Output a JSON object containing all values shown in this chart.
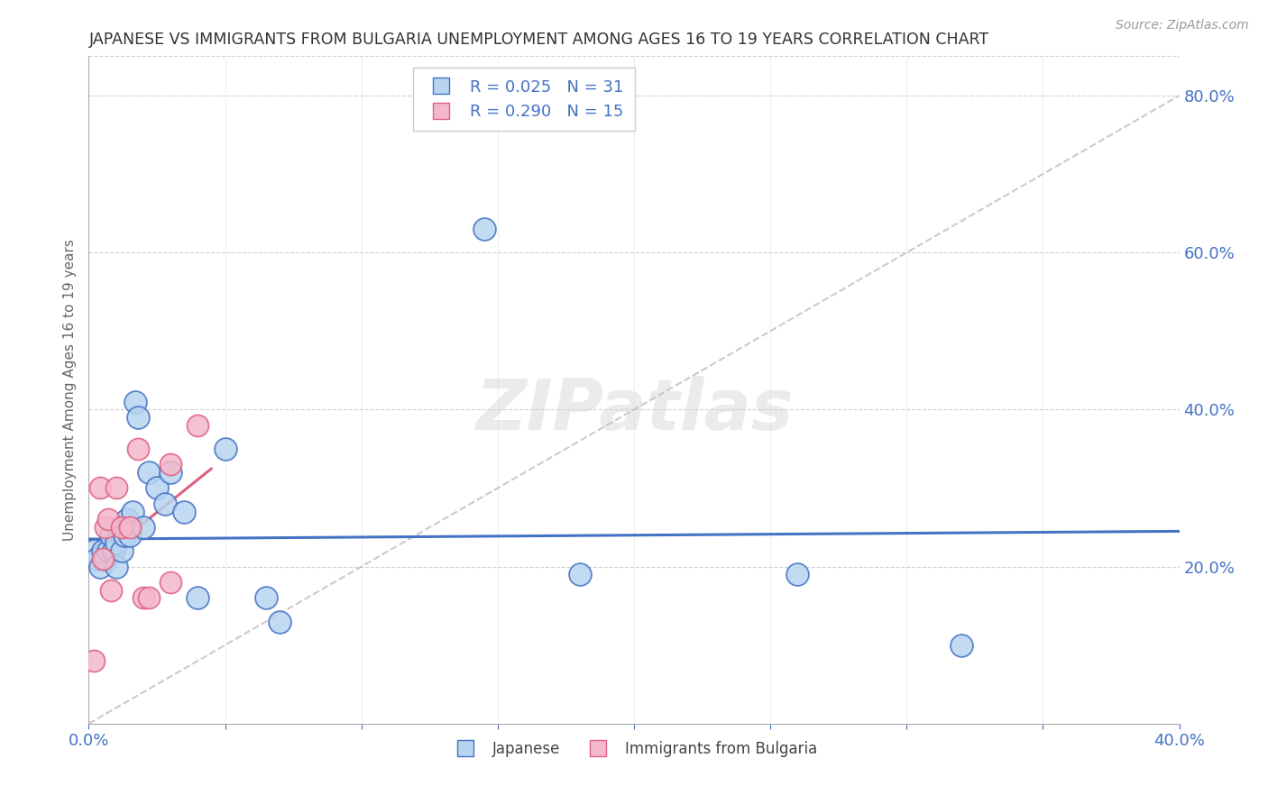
{
  "title": "JAPANESE VS IMMIGRANTS FROM BULGARIA UNEMPLOYMENT AMONG AGES 16 TO 19 YEARS CORRELATION CHART",
  "source": "Source: ZipAtlas.com",
  "ylabel": "Unemployment Among Ages 16 to 19 years",
  "xlim": [
    0.0,
    0.4
  ],
  "ylim": [
    0.0,
    0.85
  ],
  "right_yticks": [
    0.2,
    0.4,
    0.6,
    0.8
  ],
  "right_yticklabels": [
    "20.0%",
    "40.0%",
    "60.0%",
    "80.0%"
  ],
  "xticks": [
    0.0,
    0.05,
    0.1,
    0.15,
    0.2,
    0.25,
    0.3,
    0.35,
    0.4
  ],
  "watermark": "ZIPatlas",
  "legend_R1": "R = 0.025",
  "legend_N1": "N = 31",
  "legend_R2": "R = 0.290",
  "legend_N2": "N = 15",
  "color_japanese": "#b8d4f0",
  "color_bulgaria": "#f4b8cc",
  "color_line_japanese": "#4472c4",
  "color_line_bulgaria": "#e06080",
  "color_diag_line": "#c8b8c0",
  "background": "#ffffff",
  "grid_color": "#d0d0d0",
  "japanese_x": [
    0.002,
    0.003,
    0.004,
    0.005,
    0.006,
    0.007,
    0.008,
    0.009,
    0.01,
    0.01,
    0.012,
    0.013,
    0.014,
    0.015,
    0.016,
    0.017,
    0.018,
    0.02,
    0.022,
    0.025,
    0.028,
    0.03,
    0.035,
    0.04,
    0.05,
    0.065,
    0.07,
    0.145,
    0.18,
    0.26,
    0.32
  ],
  "japanese_y": [
    0.22,
    0.21,
    0.2,
    0.22,
    0.21,
    0.22,
    0.24,
    0.22,
    0.2,
    0.23,
    0.22,
    0.24,
    0.26,
    0.24,
    0.27,
    0.41,
    0.39,
    0.25,
    0.32,
    0.3,
    0.28,
    0.32,
    0.27,
    0.16,
    0.35,
    0.16,
    0.13,
    0.63,
    0.19,
    0.19,
    0.1
  ],
  "bulgaria_x": [
    0.002,
    0.004,
    0.005,
    0.006,
    0.007,
    0.008,
    0.01,
    0.012,
    0.015,
    0.018,
    0.02,
    0.022,
    0.03,
    0.03,
    0.04
  ],
  "bulgaria_y": [
    0.08,
    0.3,
    0.21,
    0.25,
    0.26,
    0.17,
    0.3,
    0.25,
    0.25,
    0.35,
    0.16,
    0.16,
    0.33,
    0.18,
    0.38
  ]
}
